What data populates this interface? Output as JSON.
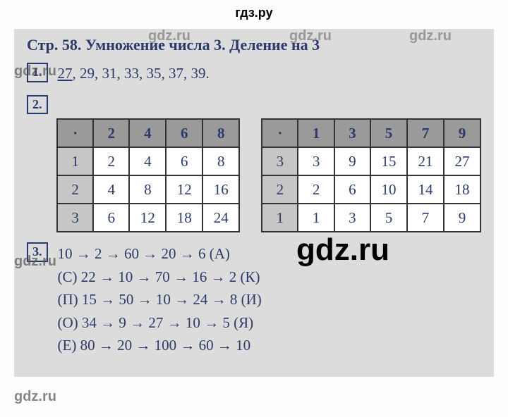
{
  "header": "гдз.ру",
  "title": "Стр. 58. Умножение числа 3. Деление на 3",
  "ex1": {
    "num": "1.",
    "first": "27",
    "rest": ", 29, 31, 33, 35, 37, 39."
  },
  "ex2": {
    "num": "2.",
    "tableA": {
      "header": [
        "·",
        "2",
        "4",
        "6",
        "8"
      ],
      "rows": [
        [
          "1",
          "2",
          "4",
          "6",
          "8"
        ],
        [
          "2",
          "4",
          "8",
          "12",
          "16"
        ],
        [
          "3",
          "6",
          "12",
          "18",
          "24"
        ]
      ]
    },
    "tableB": {
      "header": [
        "·",
        "1",
        "3",
        "5",
        "7",
        "9"
      ],
      "rows": [
        [
          "3",
          "3",
          "9",
          "15",
          "21",
          "27"
        ],
        [
          "2",
          "2",
          "6",
          "10",
          "14",
          "18"
        ],
        [
          "1",
          "1",
          "3",
          "5",
          "7",
          "9"
        ]
      ]
    }
  },
  "ex3": {
    "num": "3.",
    "lines": [
      "10 → 2 → 60 → 20 → 6 (А)",
      "(С) 22 → 10 → 70 → 16 → 2 (К)",
      "(П) 15 → 50 → 10 → 24 → 8 (И)",
      "(О) 34 → 9 → 27 → 10 → 5 (Я)",
      "(Е) 80 → 20 → 100 → 60 → 10"
    ]
  },
  "watermarks": {
    "big": "gdz.ru",
    "small": "gdz.ru"
  }
}
